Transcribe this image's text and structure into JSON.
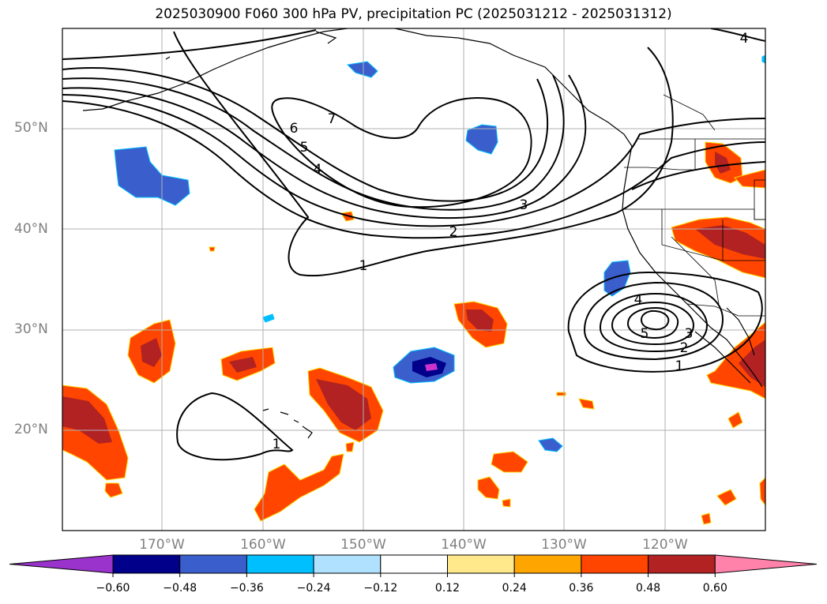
{
  "title": "2025030900 F060 300 hPa PV, precipitation PC (2025031212 - 2025031312)",
  "lat_labels": [
    "50°N",
    "40°N",
    "30°N",
    "20°N"
  ],
  "lon_labels": [
    "170°W",
    "160°W",
    "150°W",
    "140°W",
    "130°W",
    "120°W"
  ],
  "colorbar": {
    "ticks": [
      "−0.60",
      "−0.48",
      "−0.36",
      "−0.24",
      "−0.12",
      "0.12",
      "0.24",
      "0.36",
      "0.48",
      "0.60"
    ],
    "colors": [
      "#9933cc",
      "#00008b",
      "#3a5fcd",
      "#00bfff",
      "#b0e2ff",
      "#ffffff",
      "#ffe98a",
      "#ffa500",
      "#ff4500",
      "#b22222",
      "#ff82ab"
    ]
  },
  "contour_labels": [
    "7",
    "6",
    "5",
    "4",
    "3",
    "2",
    "1",
    "4",
    "5",
    "3",
    "2",
    "1",
    "1",
    "4"
  ]
}
